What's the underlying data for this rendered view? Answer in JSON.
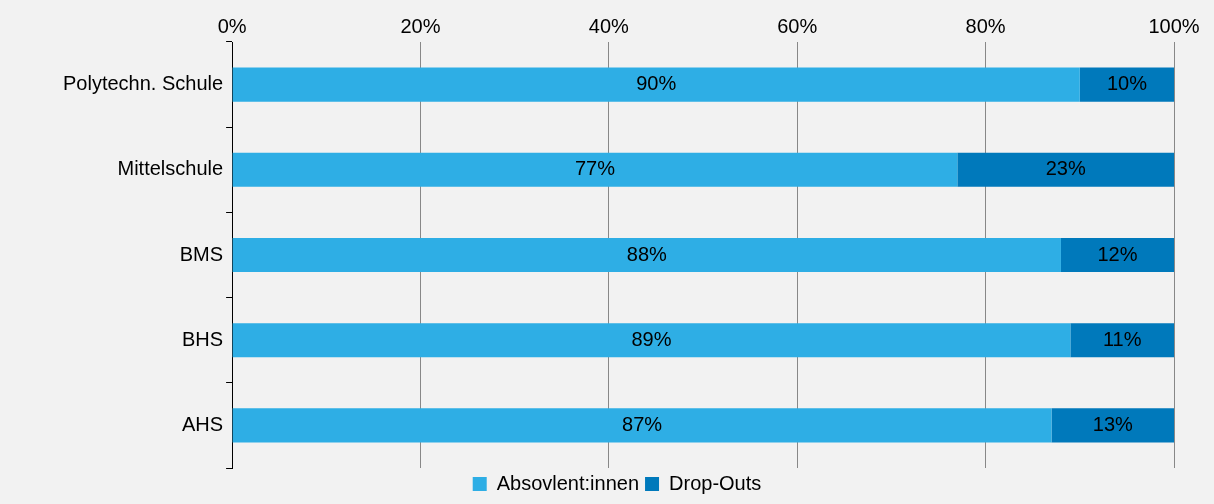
{
  "chart_data": {
    "type": "bar",
    "orientation": "horizontal",
    "stacked": true,
    "categories": [
      "Polytechn. Schule",
      "Mittelschule",
      "BMS",
      "BHS",
      "AHS"
    ],
    "series": [
      {
        "name": "Absovlent:innen",
        "color": "#2eaee5",
        "values": [
          90,
          77,
          88,
          89,
          87
        ],
        "value_labels": [
          "90%",
          "77%",
          "88%",
          "89%",
          "87%"
        ]
      },
      {
        "name": "Drop-Outs",
        "color": "#0079bb",
        "values": [
          10,
          23,
          12,
          11,
          13
        ],
        "value_labels": [
          "10%",
          "23%",
          "12%",
          "11%",
          "13%"
        ]
      }
    ],
    "xlim": [
      0,
      100
    ],
    "xticks": [
      {
        "value": 0,
        "label": "0%"
      },
      {
        "value": 20,
        "label": "20%"
      },
      {
        "value": 40,
        "label": "40%"
      },
      {
        "value": 60,
        "label": "60%"
      },
      {
        "value": 80,
        "label": "80%"
      },
      {
        "value": 100,
        "label": "100%"
      }
    ],
    "grid": "x",
    "legend": "bottom"
  }
}
